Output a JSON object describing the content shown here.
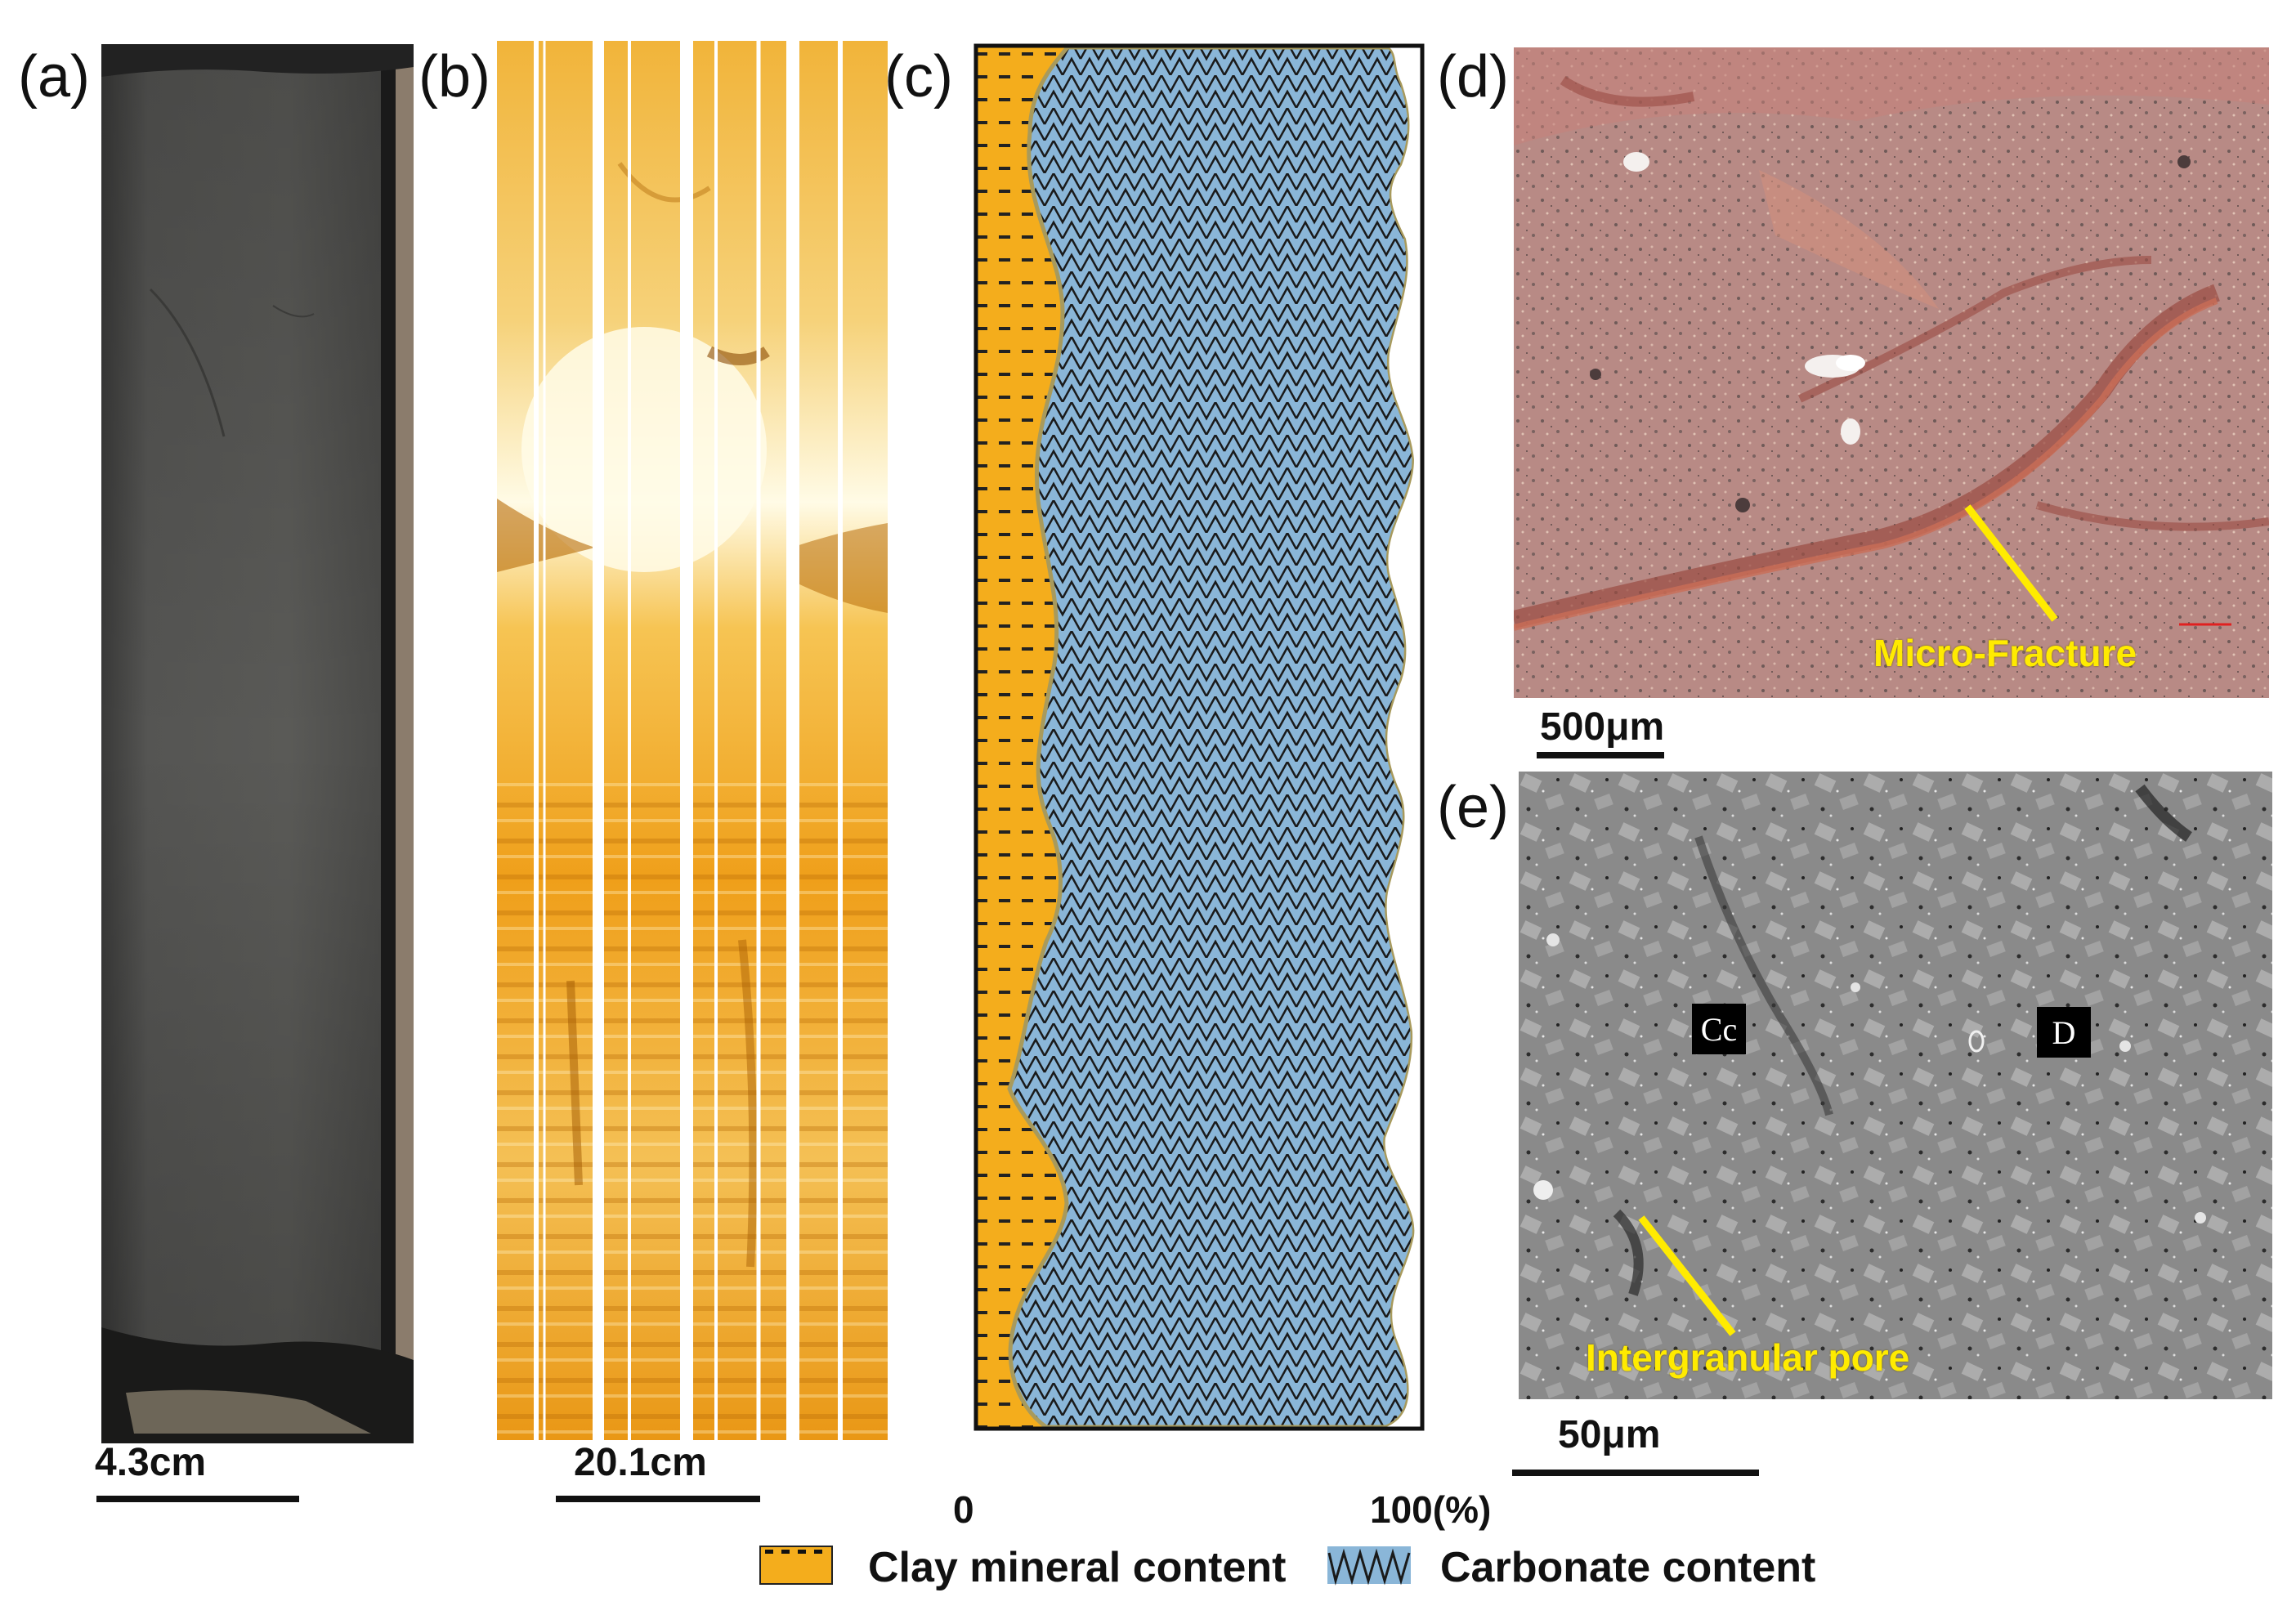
{
  "panels": {
    "a": {
      "label": "(a)",
      "scale": "4.3cm"
    },
    "b": {
      "label": "(b)",
      "scale": "20.1cm"
    },
    "c": {
      "label": "(c)",
      "axis_min": "0",
      "axis_max": "100(%)"
    },
    "d": {
      "label": "(d)",
      "scale": "500μm",
      "annotation": "Micro-Fracture"
    },
    "e": {
      "label": "(e)",
      "scale": "50μm",
      "annotation": "Intergranular pore",
      "tags": [
        "Cc",
        "D"
      ]
    }
  },
  "legend": {
    "clay": "Clay mineral content",
    "carbonate": "Carbonate content"
  },
  "colors": {
    "clay": "#f4ad1c",
    "carbonate": "#8ab6d8",
    "core": "#4e4e4c",
    "thin_section": "#b98a84",
    "sem": "#8a8a8a",
    "annotation": "#ffeb00"
  }
}
